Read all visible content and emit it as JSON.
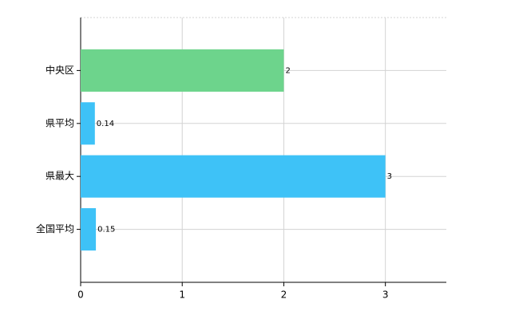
{
  "chart_data": {
    "type": "barh",
    "categories": [
      "中央区",
      "県平均",
      "県最大",
      "全国平均"
    ],
    "values": [
      2,
      0.14,
      3,
      0.15
    ],
    "colors": [
      "#6dd48c",
      "#3ec2f7",
      "#3ec2f7",
      "#3ec2f7"
    ],
    "xlim": [
      0,
      3.6
    ],
    "xticks": [
      0,
      1,
      2,
      3
    ],
    "grid": true
  }
}
